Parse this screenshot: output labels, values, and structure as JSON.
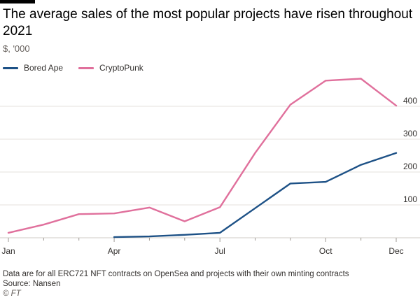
{
  "title": "The average sales of the most popular projects have risen throughout 2021",
  "subtitle": "$, '000",
  "footer": {
    "note": "Data are for all ERC721 NFT contracts on OpenSea and projects with their own minting contracts",
    "source": "Source: Nansen",
    "copyright": "© FT"
  },
  "chart_data": {
    "type": "line",
    "x": [
      "Jan",
      "Feb",
      "Mar",
      "Apr",
      "May",
      "Jun",
      "Jul",
      "Aug",
      "Sep",
      "Oct",
      "Nov",
      "Dec"
    ],
    "x_tick_labels": [
      "Jan",
      "Apr",
      "Jul",
      "Oct",
      "Dec"
    ],
    "y_ticks": [
      100,
      200,
      300,
      400
    ],
    "ylim": [
      0,
      500
    ],
    "grid": true,
    "legend_position": "top-left",
    "series": [
      {
        "name": "Bored Ape",
        "color": "#1d5186",
        "values": [
          null,
          null,
          null,
          2,
          4,
          9,
          15,
          90,
          165,
          170,
          222,
          258
        ]
      },
      {
        "name": "CryptoPunk",
        "color": "#e0709c",
        "values": [
          15,
          40,
          72,
          74,
          92,
          50,
          93,
          258,
          405,
          478,
          484,
          402
        ]
      }
    ]
  }
}
